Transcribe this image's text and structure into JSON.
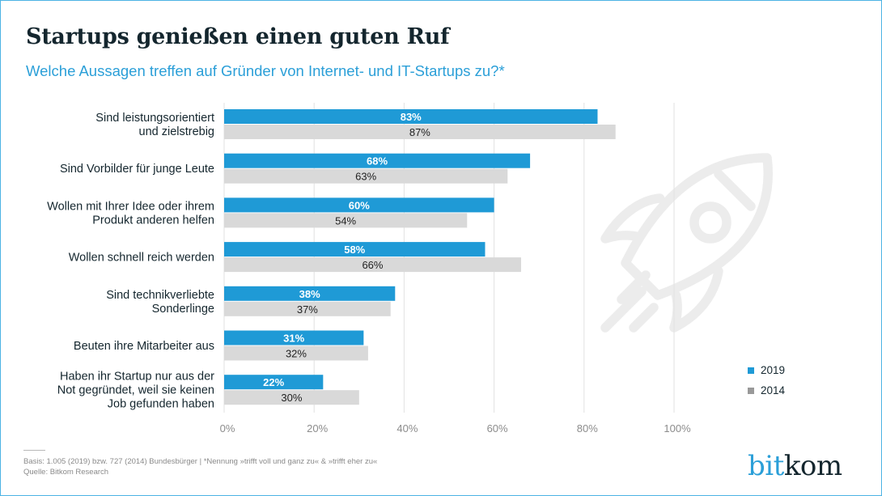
{
  "header": {
    "title": "Startups genießen einen guten Ruf",
    "subtitle": "Welche Aussagen treffen auf Gründer von Internet- und IT-Startups zu?*"
  },
  "legend": [
    {
      "label": "2019",
      "color": "#1f9ad6"
    },
    {
      "label": "2014",
      "color": "#999999"
    }
  ],
  "footer": {
    "basis": "Basis: 1.005 (2019) bzw. 727 (2014) Bundesbürger | *Nennung »trifft voll und ganz zu« & »trifft eher zu«",
    "source": "Quelle: Bitkom Research"
  },
  "logo": {
    "part1": "bit",
    "part2": "kom"
  },
  "decoration": {
    "icon": "rocket-icon"
  },
  "chart_data": {
    "type": "bar",
    "orientation": "horizontal",
    "title": "Startups genießen einen guten Ruf",
    "subtitle": "Welche Aussagen treffen auf Gründer von Internet- und IT-Startups zu?*",
    "xlabel": "",
    "ylabel": "",
    "xlim": [
      0,
      100
    ],
    "x_ticks": [
      "0%",
      "20%",
      "40%",
      "60%",
      "80%",
      "100%"
    ],
    "x_tick_values": [
      0,
      20,
      40,
      60,
      80,
      100
    ],
    "grid": true,
    "legend_position": "bottom-right",
    "categories": [
      [
        "Sind leistungsorientiert",
        "und zielstrebig"
      ],
      [
        "Sind Vorbilder für junge Leute"
      ],
      [
        "Wollen mit Ihrer Idee oder ihrem",
        "Produkt anderen helfen"
      ],
      [
        "Wollen schnell reich werden"
      ],
      [
        "Sind technikverliebte",
        "Sonderlinge"
      ],
      [
        "Beuten ihre Mitarbeiter aus"
      ],
      [
        "Haben ihr Startup nur aus der",
        "Not gegründet, weil sie keinen",
        "Job gefunden haben"
      ]
    ],
    "series": [
      {
        "name": "2019",
        "color": "#1f9ad6",
        "label_color": "#ffffff",
        "values": [
          83,
          68,
          60,
          58,
          38,
          31,
          22
        ]
      },
      {
        "name": "2014",
        "color": "#d9d9d9",
        "label_color": "#222222",
        "values": [
          87,
          63,
          54,
          66,
          37,
          32,
          30
        ]
      }
    ],
    "value_suffix": "%"
  }
}
